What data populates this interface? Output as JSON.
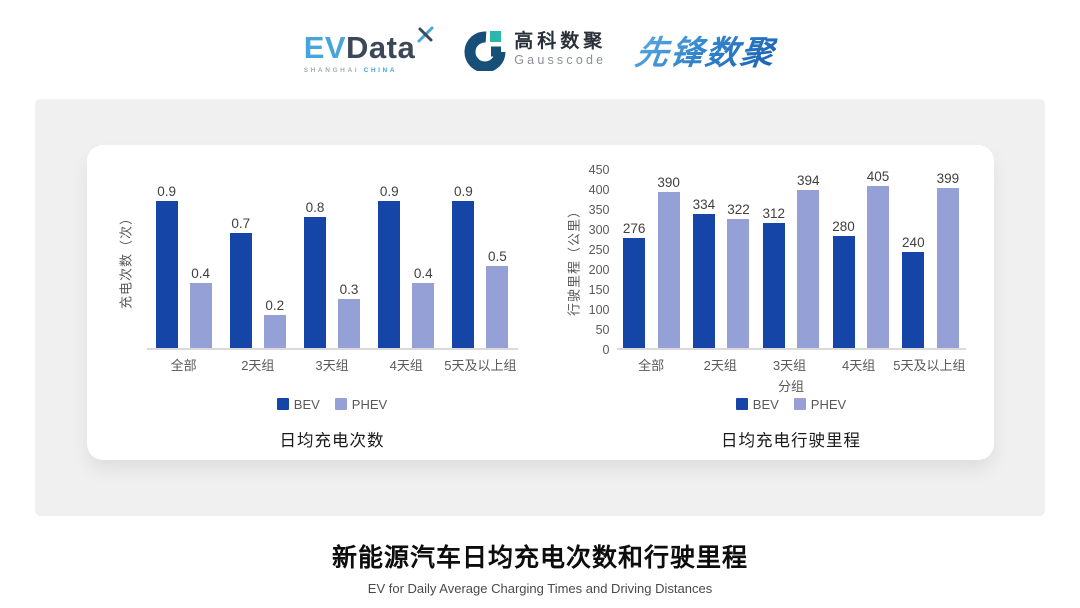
{
  "page": {
    "title": "新能源汽车日均充电次数和行驶里程",
    "subtitle": "EV for Daily Average Charging Times and Driving Distances",
    "panel_color": "#F0F0F1",
    "card_color": "#FFFFFF"
  },
  "header": {
    "evdata": {
      "part1": "EV",
      "part2": "Data",
      "sub1": "SHANGHAI",
      "sub2": "CHINA",
      "color_light": "#47A5DC",
      "color_dark": "#3D4857",
      "sub_gray": "#A7ACB2"
    },
    "gausscode": {
      "cn": "高科数聚",
      "en": "Gausscode",
      "icon_dark": "#174F79",
      "icon_teal": "#2BB7AC"
    },
    "xianfeng": {
      "text": "先锋数聚",
      "color_start": "#5FB0E8",
      "color_end": "#1A5FB2"
    }
  },
  "chart_data": [
    {
      "type": "bar",
      "title": "日均充电次数",
      "ylabel": "充电次数（次）",
      "xlabel": "",
      "categories": [
        "全部",
        "2天组",
        "3天组",
        "4天组",
        "5天及以上组"
      ],
      "series": [
        {
          "name": "BEV",
          "color": "#1545A6",
          "values": [
            0.9,
            0.7,
            0.8,
            0.9,
            0.9
          ]
        },
        {
          "name": "PHEV",
          "color": "#95A1D6",
          "values": [
            0.4,
            0.2,
            0.3,
            0.4,
            0.5
          ]
        }
      ],
      "ylim": [
        0,
        1.1
      ],
      "y_ticks": [],
      "grid": false,
      "legend_position": "bottom",
      "value_labels": true
    },
    {
      "type": "bar",
      "title": "日均充电行驶里程",
      "ylabel": "行驶里程（公里）",
      "xlabel": "分组",
      "categories": [
        "全部",
        "2天组",
        "3天组",
        "4天组",
        "5天及以上组"
      ],
      "series": [
        {
          "name": "BEV",
          "color": "#1545A6",
          "values": [
            276,
            334,
            312,
            280,
            240
          ]
        },
        {
          "name": "PHEV",
          "color": "#95A1D6",
          "values": [
            390,
            322,
            394,
            405,
            399
          ]
        }
      ],
      "ylim": [
        0,
        450
      ],
      "y_ticks": [
        0,
        50,
        100,
        150,
        200,
        250,
        300,
        350,
        400,
        450
      ],
      "grid": false,
      "legend_position": "bottom",
      "value_labels": true
    }
  ]
}
